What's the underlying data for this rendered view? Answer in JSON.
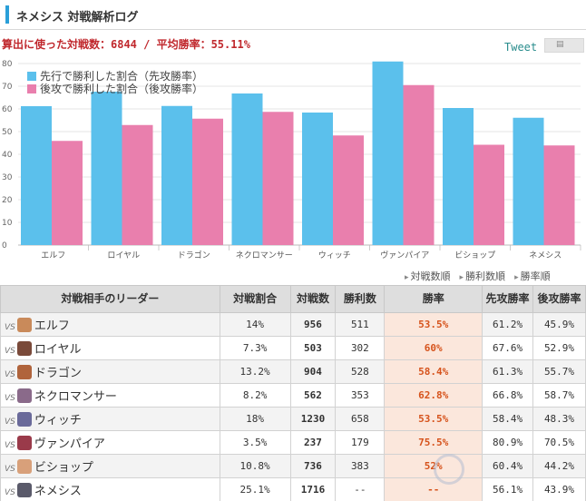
{
  "header": {
    "title": "ネメシス 対戦解析ログ"
  },
  "summary": {
    "text": "算出に使った対戦数：6844 / 平均勝率：55.11%"
  },
  "tweet": {
    "label": "Tweet"
  },
  "bookmark": {
    "icon": "bookmark-icon",
    "glyph": "▤"
  },
  "colors": {
    "first": "#5bc0ec",
    "second": "#e97fad",
    "accent": "#2a9fd8",
    "rate": "#d6531c"
  },
  "chart_data": {
    "type": "bar",
    "categories": [
      "エルフ",
      "ロイヤル",
      "ドラゴン",
      "ネクロマンサー",
      "ウィッチ",
      "ヴァンパイア",
      "ビショップ",
      "ネメシス"
    ],
    "series": [
      {
        "name": "先行で勝利した割合（先攻勝率）",
        "values": [
          61.2,
          67.6,
          61.3,
          66.8,
          58.4,
          80.9,
          60.4,
          56.1
        ]
      },
      {
        "name": "後攻で勝利した割合（後攻勝率）",
        "values": [
          45.9,
          52.9,
          55.7,
          58.7,
          48.3,
          70.5,
          44.2,
          43.9
        ]
      }
    ],
    "yticks": [
      "0",
      "10",
      "20",
      "30",
      "40",
      "50",
      "60",
      "70",
      "80"
    ],
    "ylim": [
      0,
      80
    ],
    "legend_position": "top-left",
    "grid": true
  },
  "sorts": [
    "対戦数順",
    "勝利数順",
    "勝率順"
  ],
  "table": {
    "headers": [
      "対戦相手のリーダー",
      "対戦割合",
      "対戦数",
      "勝利数",
      "勝率",
      "先攻勝率",
      "後攻勝率"
    ],
    "vs_label": "VS",
    "rows": [
      {
        "leader": "エルフ",
        "share": "14%",
        "battles": "956",
        "wins": "511",
        "rate": "53.5%",
        "first": "61.2%",
        "second": "45.9%",
        "avatar": "#c98a5a"
      },
      {
        "leader": "ロイヤル",
        "share": "7.3%",
        "battles": "503",
        "wins": "302",
        "rate": "60%",
        "first": "67.6%",
        "second": "52.9%",
        "avatar": "#7a4a3a"
      },
      {
        "leader": "ドラゴン",
        "share": "13.2%",
        "battles": "904",
        "wins": "528",
        "rate": "58.4%",
        "first": "61.3%",
        "second": "55.7%",
        "avatar": "#b0643c"
      },
      {
        "leader": "ネクロマンサー",
        "share": "8.2%",
        "battles": "562",
        "wins": "353",
        "rate": "62.8%",
        "first": "66.8%",
        "second": "58.7%",
        "avatar": "#8a6a8a"
      },
      {
        "leader": "ウィッチ",
        "share": "18%",
        "battles": "1230",
        "wins": "658",
        "rate": "53.5%",
        "first": "58.4%",
        "second": "48.3%",
        "avatar": "#6a6a9a"
      },
      {
        "leader": "ヴァンパイア",
        "share": "3.5%",
        "battles": "237",
        "wins": "179",
        "rate": "75.5%",
        "first": "80.9%",
        "second": "70.5%",
        "avatar": "#9a3a4a"
      },
      {
        "leader": "ビショップ",
        "share": "10.8%",
        "battles": "736",
        "wins": "383",
        "rate": "52%",
        "first": "60.4%",
        "second": "44.2%",
        "avatar": "#d8a07a"
      },
      {
        "leader": "ネメシス",
        "share": "25.1%",
        "battles": "1716",
        "wins": "--",
        "rate": "--",
        "first": "56.1%",
        "second": "43.9%",
        "avatar": "#5a5a6a"
      }
    ]
  }
}
